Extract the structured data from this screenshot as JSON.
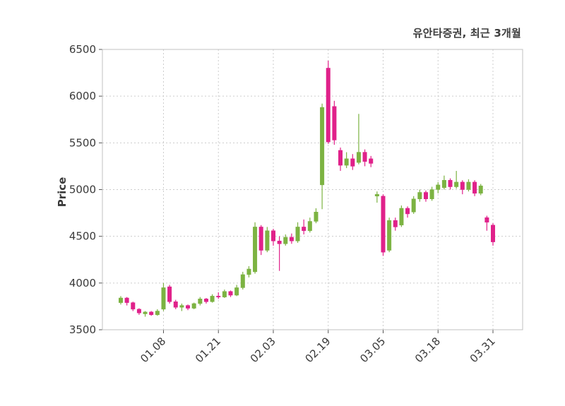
{
  "header": {
    "title": "유안타증권, 최근 3개월"
  },
  "chart_data": {
    "type": "candlestick",
    "title": "유안타증권, 최근 3개월",
    "xlabel": "",
    "ylabel": "Price",
    "ylim": [
      3500,
      6500
    ],
    "yticks": [
      3500,
      4000,
      4500,
      5000,
      5500,
      6000,
      6500
    ],
    "xticks": [
      {
        "index": 7,
        "label": "01.08"
      },
      {
        "index": 16,
        "label": "01.21"
      },
      {
        "index": 25,
        "label": "02.03"
      },
      {
        "index": 34,
        "label": "02.19"
      },
      {
        "index": 43,
        "label": "03.05"
      },
      {
        "index": 52,
        "label": "03.18"
      },
      {
        "index": 61,
        "label": "03.31"
      }
    ],
    "grid": true,
    "legend": "none",
    "up_color": "#7CB342",
    "down_color": "#E0218A",
    "border_color": "#c0c0c0",
    "grid_color": "#cccccc",
    "tick_color": "#3a3a3a",
    "candles_format": "[open, high, low, close]",
    "candles": [
      [
        3790,
        3860,
        3770,
        3840
      ],
      [
        3840,
        3850,
        3760,
        3790
      ],
      [
        3790,
        3800,
        3700,
        3720
      ],
      [
        3720,
        3730,
        3660,
        3680
      ],
      [
        3670,
        3700,
        3640,
        3690
      ],
      [
        3690,
        3700,
        3650,
        3660
      ],
      [
        3660,
        3720,
        3650,
        3700
      ],
      [
        3720,
        4000,
        3700,
        3950
      ],
      [
        3960,
        3980,
        3780,
        3800
      ],
      [
        3800,
        3820,
        3720,
        3740
      ],
      [
        3740,
        3780,
        3700,
        3760
      ],
      [
        3760,
        3770,
        3710,
        3730
      ],
      [
        3730,
        3790,
        3720,
        3780
      ],
      [
        3780,
        3850,
        3760,
        3830
      ],
      [
        3830,
        3840,
        3780,
        3800
      ],
      [
        3800,
        3880,
        3790,
        3860
      ],
      [
        3860,
        3900,
        3830,
        3850
      ],
      [
        3850,
        3930,
        3840,
        3910
      ],
      [
        3910,
        3920,
        3850,
        3870
      ],
      [
        3870,
        3980,
        3860,
        3950
      ],
      [
        3950,
        4120,
        3930,
        4090
      ],
      [
        4090,
        4180,
        4060,
        4150
      ],
      [
        4120,
        4650,
        4100,
        4600
      ],
      [
        4600,
        4620,
        4300,
        4350
      ],
      [
        4350,
        4600,
        4330,
        4560
      ],
      [
        4560,
        4580,
        4400,
        4450
      ],
      [
        4450,
        4500,
        4130,
        4420
      ],
      [
        4420,
        4520,
        4400,
        4490
      ],
      [
        4490,
        4530,
        4420,
        4450
      ],
      [
        4450,
        4650,
        4430,
        4600
      ],
      [
        4600,
        4680,
        4520,
        4560
      ],
      [
        4560,
        4700,
        4540,
        4660
      ],
      [
        4660,
        4800,
        4640,
        4760
      ],
      [
        5050,
        5920,
        4790,
        5880
      ],
      [
        6300,
        6380,
        5490,
        5510
      ],
      [
        5890,
        5950,
        5480,
        5530
      ],
      [
        5420,
        5450,
        5200,
        5260
      ],
      [
        5260,
        5400,
        5230,
        5330
      ],
      [
        5330,
        5380,
        5210,
        5250
      ],
      [
        5290,
        5810,
        5270,
        5400
      ],
      [
        5400,
        5430,
        5250,
        5300
      ],
      [
        5330,
        5360,
        5240,
        5280
      ],
      [
        4930,
        4980,
        4860,
        4950
      ],
      [
        4930,
        4950,
        4290,
        4330
      ],
      [
        4350,
        4700,
        4330,
        4670
      ],
      [
        4670,
        4700,
        4560,
        4600
      ],
      [
        4620,
        4830,
        4600,
        4800
      ],
      [
        4800,
        4820,
        4700,
        4740
      ],
      [
        4760,
        4930,
        4740,
        4900
      ],
      [
        4900,
        5000,
        4870,
        4970
      ],
      [
        4970,
        4990,
        4870,
        4900
      ],
      [
        4900,
        5030,
        4880,
        5000
      ],
      [
        5000,
        5080,
        4960,
        5050
      ],
      [
        5020,
        5150,
        5000,
        5100
      ],
      [
        5100,
        5120,
        5000,
        5030
      ],
      [
        5030,
        5200,
        5010,
        5080
      ],
      [
        5080,
        5100,
        4950,
        5000
      ],
      [
        5000,
        5110,
        4980,
        5080
      ],
      [
        5080,
        5100,
        4930,
        4960
      ],
      [
        4960,
        5060,
        4940,
        5040
      ],
      [
        4700,
        4720,
        4560,
        4650
      ],
      [
        4620,
        4640,
        4400,
        4440
      ]
    ]
  }
}
